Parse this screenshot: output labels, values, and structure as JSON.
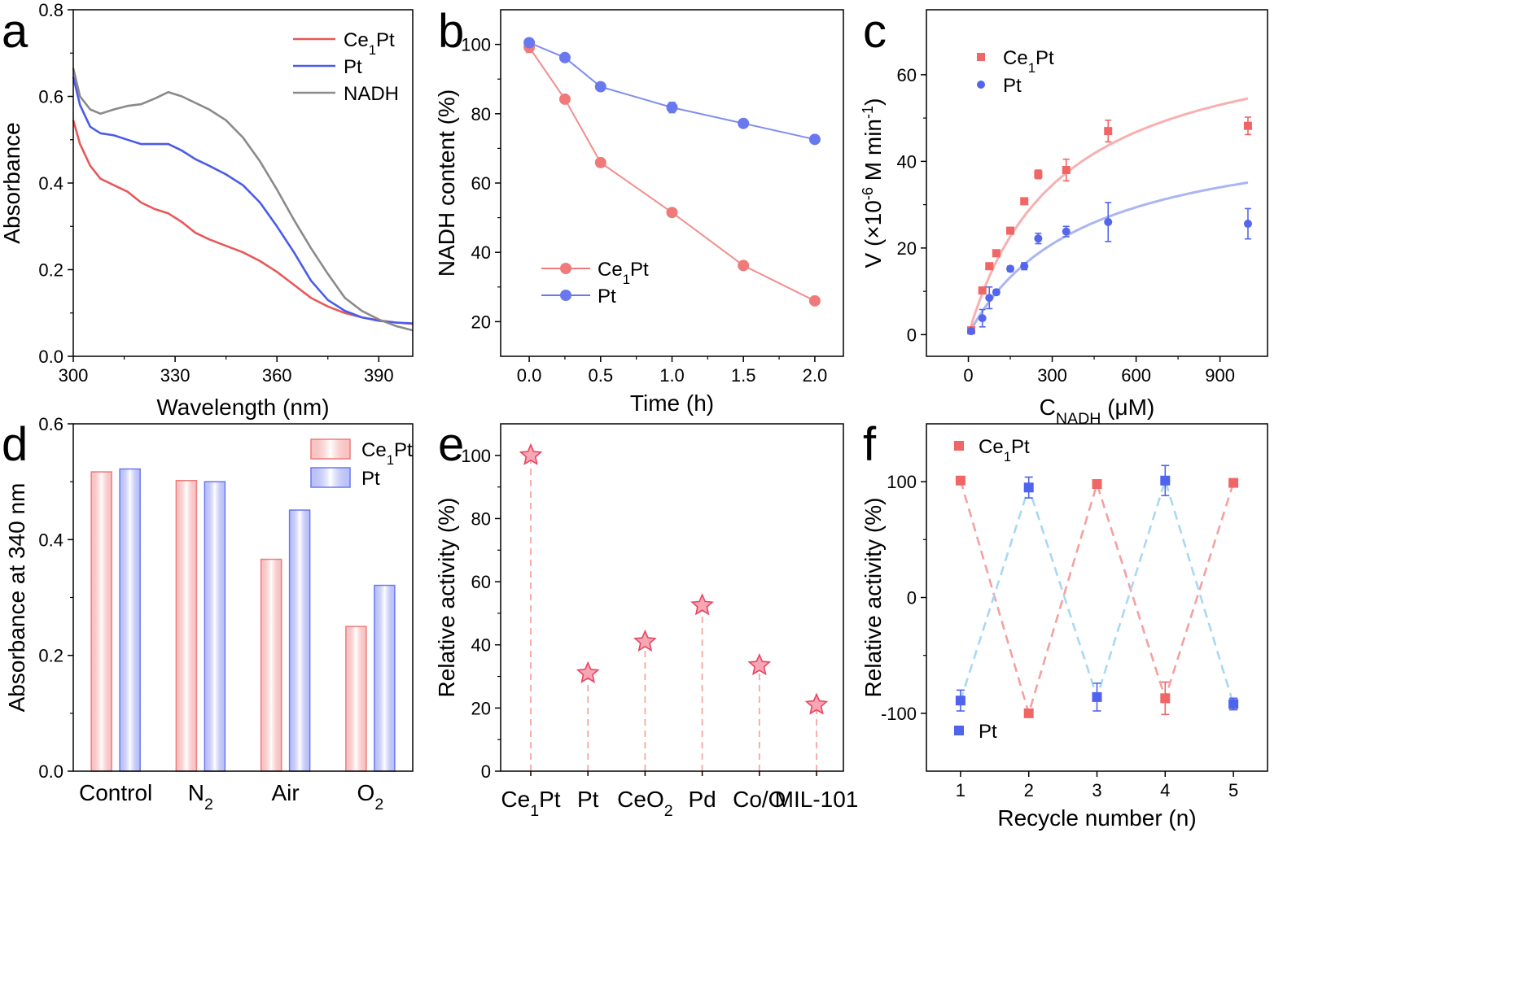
{
  "figure": {
    "title": ""
  },
  "chart_data": [
    {
      "panel": "a",
      "type": "line",
      "title": "",
      "xlabel": "Wavelength (nm)",
      "ylabel": "Absorbance",
      "xlim": [
        300,
        400
      ],
      "ylim": [
        0.0,
        0.8
      ],
      "xticks": [
        300,
        330,
        360,
        390
      ],
      "yticks": [
        0.0,
        0.2,
        0.4,
        0.6,
        0.8
      ],
      "xtick_labels": [
        "300",
        "330",
        "360",
        "390"
      ],
      "ytick_labels": [
        "0.0",
        "0.2",
        "0.4",
        "0.6",
        "0.8"
      ],
      "legend": "top-right",
      "series": [
        {
          "name": "Ce1Pt",
          "label_main": "Ce",
          "label_sub": "1",
          "label_tail": "Pt",
          "color": "#e8585a",
          "x": [
            300,
            302,
            305,
            308,
            312,
            316,
            320,
            324,
            328,
            332,
            336,
            340,
            345,
            350,
            355,
            360,
            365,
            370,
            375,
            380,
            385,
            390,
            395,
            400
          ],
          "y": [
            0.545,
            0.49,
            0.44,
            0.41,
            0.395,
            0.38,
            0.355,
            0.34,
            0.33,
            0.31,
            0.285,
            0.27,
            0.255,
            0.24,
            0.22,
            0.195,
            0.165,
            0.135,
            0.115,
            0.1,
            0.09,
            0.083,
            0.078,
            0.075
          ]
        },
        {
          "name": "Pt",
          "label_main": "Pt",
          "label_sub": "",
          "label_tail": "",
          "color": "#4a5be8",
          "x": [
            300,
            302,
            305,
            308,
            312,
            316,
            320,
            324,
            328,
            332,
            336,
            340,
            345,
            350,
            355,
            360,
            365,
            370,
            375,
            380,
            385,
            390,
            395,
            400
          ],
          "y": [
            0.645,
            0.58,
            0.53,
            0.515,
            0.51,
            0.5,
            0.49,
            0.49,
            0.49,
            0.475,
            0.455,
            0.44,
            0.42,
            0.395,
            0.355,
            0.3,
            0.24,
            0.175,
            0.13,
            0.105,
            0.09,
            0.082,
            0.078,
            0.076
          ]
        },
        {
          "name": "NADH",
          "label_main": "NADH",
          "label_sub": "",
          "label_tail": "",
          "color": "#8a8a8a",
          "x": [
            300,
            302,
            305,
            308,
            312,
            316,
            320,
            324,
            328,
            332,
            336,
            340,
            345,
            350,
            355,
            360,
            365,
            370,
            375,
            380,
            385,
            390,
            395,
            400
          ],
          "y": [
            0.665,
            0.6,
            0.57,
            0.56,
            0.57,
            0.578,
            0.582,
            0.595,
            0.61,
            0.6,
            0.585,
            0.57,
            0.545,
            0.505,
            0.45,
            0.385,
            0.315,
            0.25,
            0.19,
            0.135,
            0.105,
            0.085,
            0.07,
            0.06
          ]
        }
      ]
    },
    {
      "panel": "b",
      "type": "line",
      "title": "",
      "xlabel": "Time (h)",
      "ylabel": "NADH content (%)",
      "xlim": [
        -0.2,
        2.2
      ],
      "ylim": [
        10,
        110
      ],
      "xticks": [
        0.0,
        0.5,
        1.0,
        1.5,
        2.0
      ],
      "yticks": [
        20,
        40,
        60,
        80,
        100
      ],
      "xtick_labels": [
        "0.0",
        "0.5",
        "1.0",
        "1.5",
        "2.0"
      ],
      "ytick_labels": [
        "20",
        "40",
        "60",
        "80",
        "100"
      ],
      "legend": "bottom-left",
      "series": [
        {
          "name": "Ce1Pt",
          "label_main": "Ce",
          "label_sub": "1",
          "label_tail": "Pt",
          "color": "#f07a7a",
          "marker": "circle",
          "x": [
            0,
            0.25,
            0.5,
            1.0,
            1.5,
            2.0
          ],
          "y": [
            99.2,
            84.2,
            65.9,
            51.5,
            36.2,
            26.0
          ],
          "err": [
            1.5,
            0.8,
            0.8,
            0.8,
            0.8,
            0.8
          ]
        },
        {
          "name": "Pt",
          "label_main": "Pt",
          "label_sub": "",
          "label_tail": "",
          "color": "#6a78ef",
          "marker": "circle",
          "x": [
            0,
            0.25,
            0.5,
            1.0,
            1.5,
            2.0
          ],
          "y": [
            100.5,
            96.2,
            87.8,
            81.8,
            77.2,
            72.6
          ],
          "err": [
            1.2,
            0.8,
            0.8,
            1.5,
            0.8,
            0.8
          ]
        }
      ]
    },
    {
      "panel": "c",
      "type": "scatter",
      "title": "",
      "xlabel_main": "C",
      "xlabel_sub": "NADH",
      "xlabel_tail": " (μM)",
      "ylabel_main": "V (×10",
      "ylabel_sup1": "-6",
      "ylabel_mid": " M min",
      "ylabel_sup2": "-1",
      "ylabel_tail": ")",
      "xlim": [
        -150,
        1070
      ],
      "ylim": [
        -5,
        75
      ],
      "xticks": [
        0,
        300,
        600,
        900
      ],
      "yticks": [
        0,
        20,
        40,
        60
      ],
      "xtick_labels": [
        "0",
        "300",
        "600",
        "900"
      ],
      "ytick_labels": [
        "0",
        "20",
        "40",
        "60"
      ],
      "legend": "top-left",
      "series": [
        {
          "name": "Ce1Pt",
          "label_main": "Ce",
          "label_sub": "1",
          "label_tail": "Pt",
          "color": "#f06666",
          "marker": "square",
          "x": [
            10,
            50,
            75,
            100,
            150,
            200,
            250,
            350,
            500,
            1000
          ],
          "y": [
            1.0,
            10.2,
            15.8,
            18.8,
            24.0,
            30.8,
            37.0,
            38.0,
            47.0,
            48.2
          ],
          "err": [
            0.5,
            0.5,
            0.5,
            0.7,
            0.7,
            0.7,
            1.0,
            2.5,
            2.5,
            2.0
          ],
          "fit": {
            "model": "Michaelis-Menten",
            "Vmax": 72.5,
            "Km": 330,
            "color": "#f7b0b0"
          }
        },
        {
          "name": "Pt",
          "label_main": "Pt",
          "label_sub": "",
          "label_tail": "",
          "color": "#5466ee",
          "marker": "circle",
          "x": [
            10,
            50,
            75,
            100,
            150,
            200,
            250,
            350,
            500,
            1000
          ],
          "y": [
            0.8,
            3.8,
            8.5,
            9.8,
            15.2,
            15.8,
            22.2,
            23.8,
            26.0,
            25.6
          ],
          "err": [
            0.5,
            2.0,
            2.5,
            0.6,
            0.6,
            0.8,
            1.2,
            1.2,
            4.5,
            3.5
          ],
          "fit": {
            "model": "Michaelis-Menten",
            "Vmax": 49.5,
            "Km": 410,
            "color": "#aab5f2"
          }
        }
      ]
    },
    {
      "panel": "d",
      "type": "bar",
      "title": "",
      "xlabel": "",
      "ylabel": "Absorbance at 340 nm",
      "ylim": [
        0.0,
        0.6
      ],
      "yticks": [
        0.0,
        0.2,
        0.4,
        0.6
      ],
      "ytick_labels": [
        "0.0",
        "0.2",
        "0.4",
        "0.6"
      ],
      "legend": "top-right",
      "categories": [
        {
          "main": "Control",
          "sub": ""
        },
        {
          "main": "N",
          "sub": "2"
        },
        {
          "main": "Air",
          "sub": ""
        },
        {
          "main": "O",
          "sub": "2"
        }
      ],
      "series": [
        {
          "name": "Ce1Pt",
          "label_main": "Ce",
          "label_sub": "1",
          "label_tail": "Pt",
          "color": "#f07a7a",
          "values": [
            0.517,
            0.502,
            0.366,
            0.25
          ]
        },
        {
          "name": "Pt",
          "label_main": "Pt",
          "label_sub": "",
          "label_tail": "",
          "color": "#6a78ef",
          "values": [
            0.522,
            0.5,
            0.451,
            0.321
          ]
        }
      ]
    },
    {
      "panel": "e",
      "type": "scatter",
      "title": "",
      "xlabel": "",
      "ylabel": "Relative activity (%)",
      "ylim": [
        0,
        110
      ],
      "yticks": [
        0,
        20,
        40,
        60,
        80,
        100
      ],
      "ytick_labels": [
        "0",
        "20",
        "40",
        "60",
        "80",
        "100"
      ],
      "marker": "star",
      "color": "#e8455f",
      "categories": [
        {
          "main": "Ce",
          "sub": "1",
          "tail": "Pt"
        },
        {
          "main": "Pt",
          "sub": "",
          "tail": ""
        },
        {
          "main": "CeO",
          "sub": "2",
          "tail": ""
        },
        {
          "main": "Pd",
          "sub": "",
          "tail": ""
        },
        {
          "main": "Co/O",
          "sub": "",
          "tail": ""
        },
        {
          "main": "MIL-101",
          "sub": "",
          "tail": ""
        }
      ],
      "values": [
        100,
        31,
        41,
        52.5,
        33.5,
        21
      ]
    },
    {
      "panel": "f",
      "type": "line",
      "title": "",
      "xlabel": "Recycle number (n)",
      "ylabel": "Relative activity (%)",
      "xlim": [
        0.5,
        5.5
      ],
      "ylim": [
        -150,
        150
      ],
      "xticks": [
        1,
        2,
        3,
        4,
        5
      ],
      "yticks": [
        -100,
        0,
        100
      ],
      "xtick_labels": [
        "1",
        "2",
        "3",
        "4",
        "5"
      ],
      "ytick_labels": [
        "-100",
        "0",
        "100"
      ],
      "legend": "top-left / bottom-left",
      "series": [
        {
          "name": "Ce1Pt",
          "label_main": "Ce",
          "label_sub": "1",
          "label_tail": "Pt",
          "color": "#f06666",
          "line_color": "#f5a0a0",
          "marker": "square",
          "x": [
            1,
            2,
            3,
            4,
            5
          ],
          "y": [
            101,
            -100,
            98,
            -87,
            99
          ],
          "err": [
            3,
            3,
            3,
            14,
            3
          ]
        },
        {
          "name": "Pt",
          "label_main": "Pt",
          "label_sub": "",
          "label_tail": "",
          "color": "#4f63ee",
          "line_color": "#a8d8f2",
          "marker": "square",
          "x": [
            1,
            2,
            3,
            4,
            5
          ],
          "y": [
            -89,
            95,
            -86,
            101,
            -92
          ],
          "err": [
            9,
            9,
            12,
            13,
            5
          ]
        }
      ]
    }
  ]
}
